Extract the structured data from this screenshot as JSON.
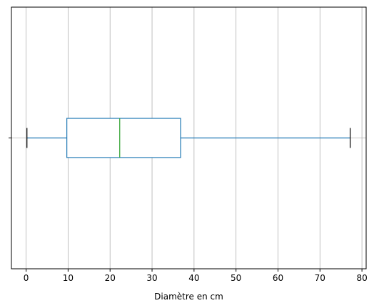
{
  "chart_data": {
    "type": "boxplot",
    "orientation": "horizontal",
    "title": "",
    "xlabel": "Diamètre en cm",
    "ylabel": "",
    "xlim": [
      -3.5,
      81
    ],
    "x_ticks": [
      0,
      10,
      20,
      30,
      40,
      50,
      60,
      70,
      80
    ],
    "grid": true,
    "box": {
      "whisker_low": 0.2,
      "q1": 9.7,
      "median": 22.3,
      "q3": 36.8,
      "whisker_high": 77.2
    },
    "colors": {
      "box": "#1f77b4",
      "median": "#2ca02c",
      "caps": "#000000",
      "grid": "#b0b0b0"
    }
  }
}
